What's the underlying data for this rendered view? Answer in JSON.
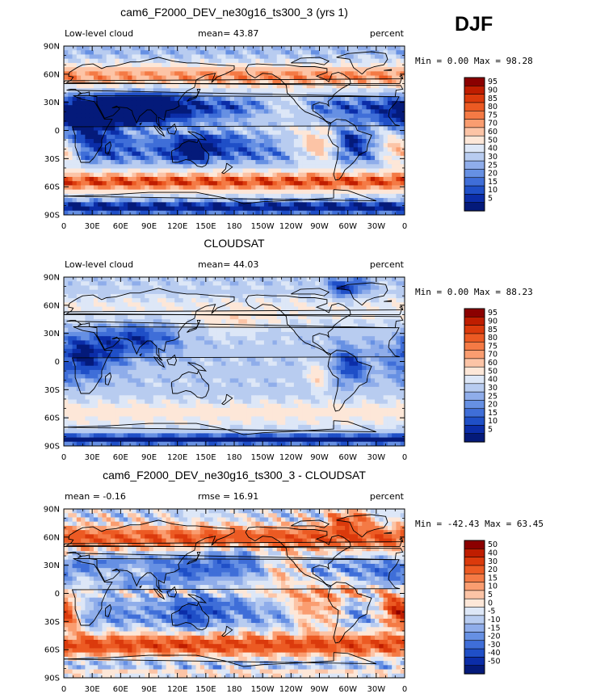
{
  "season": "DJF",
  "x_ticks": [
    "0",
    "30E",
    "60E",
    "90E",
    "120E",
    "150E",
    "180",
    "150W",
    "120W",
    "90W",
    "60W",
    "30W",
    "0"
  ],
  "y_ticks": [
    "90N",
    "60N",
    "30N",
    "0",
    "30S",
    "60S",
    "90S"
  ],
  "chart_data": [
    {
      "type": "heatmap",
      "title": "cam6_F2000_DEV_ne30g16_ts300_3 (yrs 1)",
      "left_label": "Low-level cloud",
      "center_label": "mean=  43.87",
      "units": "percent",
      "stats": "Min =   0.00 Max =  98.28",
      "min": 0.0,
      "max": 98.28,
      "mean": 43.87,
      "field": "model",
      "xlim": [
        0,
        360
      ],
      "ylim": [
        -90,
        90
      ],
      "colorbar_labels": [
        "95",
        "90",
        "85",
        "80",
        "75",
        "70",
        "60",
        "50",
        "40",
        "30",
        "25",
        "20",
        "15",
        "10",
        "5"
      ],
      "colorbar_colors": [
        "#8b0000",
        "#bf1d00",
        "#db3a0c",
        "#ec5a23",
        "#f47a45",
        "#fa9d70",
        "#fcc4a6",
        "#fde7d8",
        "#dde7f7",
        "#b8ccf0",
        "#8fadea",
        "#6690e3",
        "#3f6ed8",
        "#1f4fc7",
        "#0b2da8",
        "#041a7a"
      ]
    },
    {
      "type": "heatmap",
      "title": "CLOUDSAT",
      "left_label": "Low-level cloud",
      "center_label": "mean=  44.03",
      "units": "percent",
      "stats": "Min =   0.00 Max =  88.23",
      "min": 0.0,
      "max": 88.23,
      "mean": 44.03,
      "field": "obs",
      "xlim": [
        0,
        360
      ],
      "ylim": [
        -90,
        90
      ],
      "colorbar_labels": [
        "95",
        "90",
        "85",
        "80",
        "75",
        "70",
        "60",
        "50",
        "40",
        "30",
        "25",
        "20",
        "15",
        "10",
        "5"
      ],
      "colorbar_colors": [
        "#8b0000",
        "#bf1d00",
        "#db3a0c",
        "#ec5a23",
        "#f47a45",
        "#fa9d70",
        "#fcc4a6",
        "#fde7d8",
        "#dde7f7",
        "#b8ccf0",
        "#8fadea",
        "#6690e3",
        "#3f6ed8",
        "#1f4fc7",
        "#0b2da8",
        "#041a7a"
      ]
    },
    {
      "type": "heatmap",
      "title": "cam6_F2000_DEV_ne30g16_ts300_3 - CLOUDSAT",
      "left_label": "mean =  -0.16",
      "center_label": "rmse =  16.91",
      "units": "percent",
      "stats": "Min = -42.43 Max =  63.45",
      "min": -42.43,
      "max": 63.45,
      "mean": -0.16,
      "rmse": 16.91,
      "field": "diff",
      "xlim": [
        0,
        360
      ],
      "ylim": [
        -90,
        90
      ],
      "colorbar_labels": [
        "50",
        "40",
        "30",
        "20",
        "15",
        "10",
        "5",
        "0",
        "-5",
        "-10",
        "-15",
        "-20",
        "-30",
        "-40",
        "-50"
      ],
      "colorbar_colors": [
        "#8b0000",
        "#bf1d00",
        "#db3a0c",
        "#ec5a23",
        "#f47a45",
        "#fa9d70",
        "#fcc4a6",
        "#fde7d8",
        "#dde7f7",
        "#b8ccf0",
        "#8fadea",
        "#6690e3",
        "#3f6ed8",
        "#1f4fc7",
        "#0b2da8",
        "#041a7a"
      ]
    }
  ]
}
